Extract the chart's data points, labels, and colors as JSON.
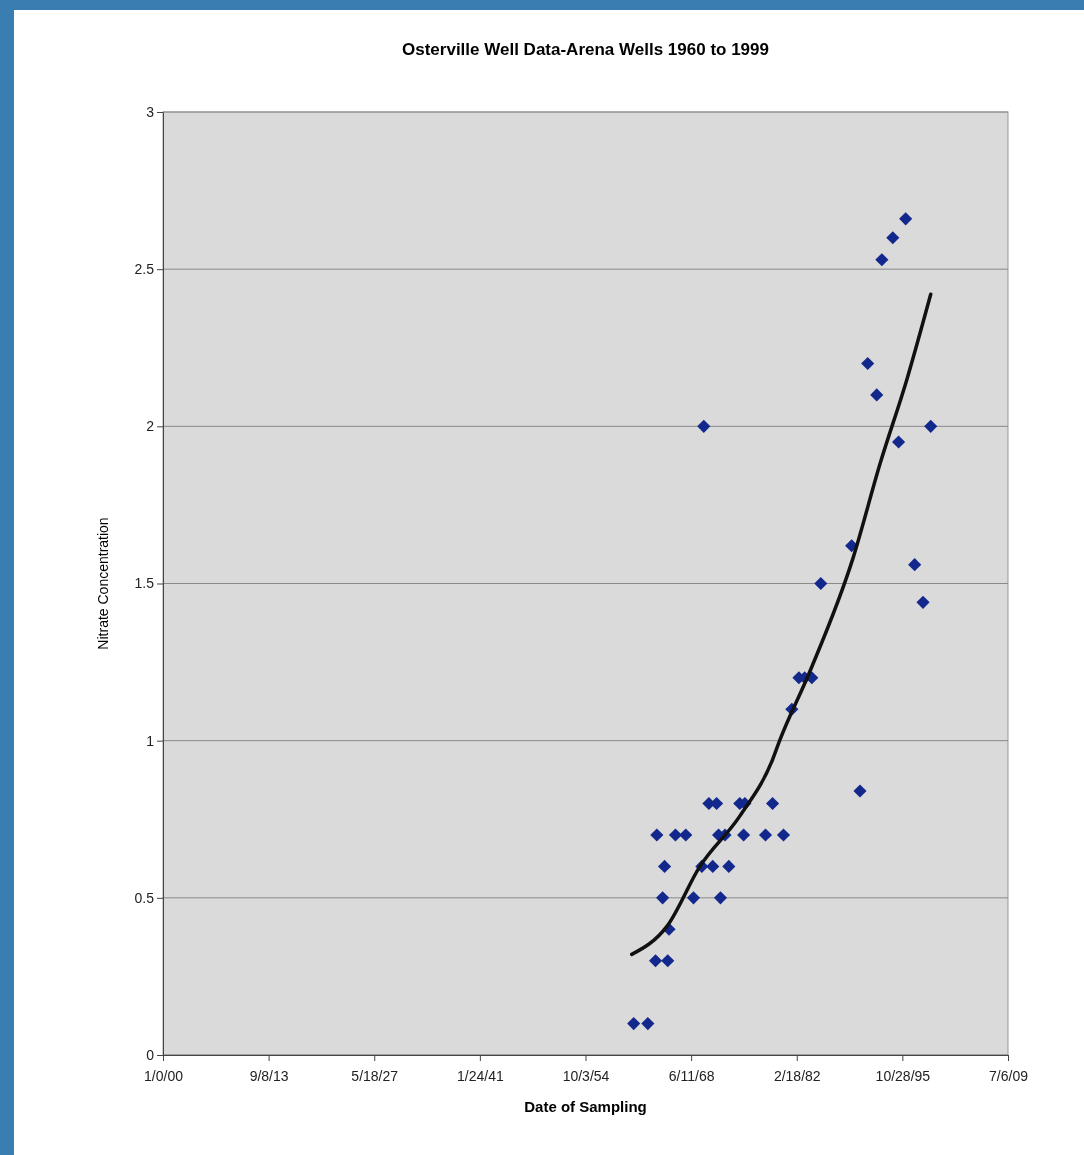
{
  "chart_data": {
    "type": "scatter",
    "title": "Osterville Well Data-Arena Wells 1960 to 1999",
    "xlabel": "Date of Sampling",
    "ylabel": "Nitrate Concentration",
    "xlim": [
      "1899-12-31",
      "2009-07-06"
    ],
    "xticks": [
      {
        "value": "1899-12-31",
        "label": "1/0/00"
      },
      {
        "value": "1913-09-08",
        "label": "9/8/13"
      },
      {
        "value": "1927-05-18",
        "label": "5/18/27"
      },
      {
        "value": "1941-01-24",
        "label": "1/24/41"
      },
      {
        "value": "1954-10-03",
        "label": "10/3/54"
      },
      {
        "value": "1968-06-11",
        "label": "6/11/68"
      },
      {
        "value": "1982-02-18",
        "label": "2/18/82"
      },
      {
        "value": "1995-10-28",
        "label": "10/28/95"
      },
      {
        "value": "2009-07-06",
        "label": "7/6/09"
      }
    ],
    "ylim": [
      0,
      3
    ],
    "yticks": [
      0,
      0.5,
      1,
      1.5,
      2,
      2.5,
      3
    ],
    "grid": "y",
    "series": [
      {
        "color": "#13288c",
        "marker": "diamond",
        "x": [
          "1961-01",
          "1962-11",
          "1963-11",
          "1965-06",
          "1964-01",
          "1965-01",
          "1964-10",
          "1965-08",
          "1966-06",
          "1967-10",
          "1968-10",
          "1969-11",
          "1970-02",
          "1970-10",
          "1971-10",
          "1971-04",
          "1972-01",
          "1972-11",
          "1972-04",
          "1973-05",
          "1974-10",
          "1975-06",
          "1975-04",
          "1978-02",
          "1979-01",
          "1980-06",
          "1981-07",
          "1982-06",
          "1983-03",
          "1984-02",
          "1985-04",
          "1989-04",
          "1990-05",
          "1991-05",
          "1992-07",
          "1993-03",
          "1994-08",
          "1996-04",
          "1995-05",
          "1999-07",
          "1997-06",
          "1998-07"
        ],
        "values": [
          0.1,
          0.1,
          0.3,
          0.3,
          0.7,
          0.6,
          0.5,
          0.4,
          0.7,
          0.7,
          0.5,
          0.6,
          2.0,
          0.8,
          0.8,
          0.6,
          0.7,
          0.7,
          0.5,
          0.6,
          0.8,
          0.8,
          0.7,
          0.7,
          0.8,
          0.7,
          1.1,
          1.2,
          1.2,
          1.2,
          1.5,
          1.62,
          0.84,
          2.2,
          2.1,
          2.53,
          2.6,
          2.66,
          1.95,
          2.0,
          1.56,
          1.44
        ]
      },
      {
        "type": "line",
        "color": "#111111",
        "line_style": "solid",
        "marker": "none",
        "x": [
          "1960-10",
          "1965-05",
          "1969-08",
          "1974-10",
          "1979-01",
          "1979-12",
          "1983-11",
          "1989-06",
          "1992-12",
          "1996-06",
          "1999-07"
        ],
        "values": [
          0.32,
          0.41,
          0.6,
          0.76,
          0.94,
          1.0,
          1.22,
          1.58,
          1.88,
          2.15,
          2.42
        ]
      }
    ]
  }
}
